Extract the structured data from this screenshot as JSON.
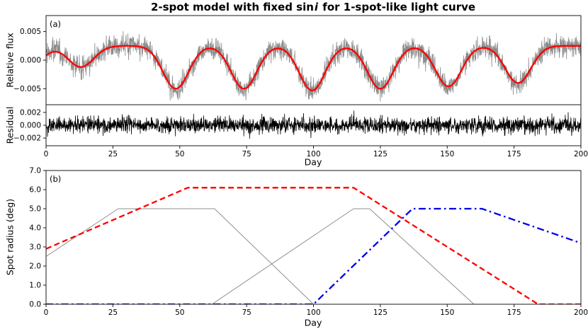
{
  "title": {
    "pre": "2-spot model with fixed sin",
    "italic": "i",
    "post": " for 1-spot-like light curve"
  },
  "chart_data": [
    {
      "id": "lightcurve",
      "type": "line",
      "panel_label": "(a)",
      "ylabel": "Relative flux",
      "xlim": [
        0,
        200
      ],
      "ylim": [
        -0.0078,
        0.0078
      ],
      "grid": false,
      "legend": "none",
      "yticks": {
        "values": [
          0.005,
          0,
          -0.005
        ],
        "labels": [
          "0.005",
          "0.000",
          "−0.005"
        ]
      },
      "series": [
        {
          "name": "observed-flux",
          "color": "#8a8a8a",
          "kind": "noisy-model",
          "noise_sigma": 0.0009,
          "linewidth": 0.8
        },
        {
          "name": "model-flux",
          "color": "#ff0000",
          "kind": "model",
          "linewidth": 2.3
        }
      ],
      "model": {
        "baseline": 0.0025,
        "sigma": 4.8,
        "dips": [
          {
            "center": -6,
            "min": -0.001
          },
          {
            "center": 13,
            "min": -0.0012
          },
          {
            "center": 48.5,
            "min": -0.005
          },
          {
            "center": 74,
            "min": -0.005
          },
          {
            "center": 99.5,
            "min": -0.0053
          },
          {
            "center": 125,
            "min": -0.005
          },
          {
            "center": 150.5,
            "min": -0.0046
          },
          {
            "center": 176.5,
            "min": -0.004
          }
        ]
      }
    },
    {
      "id": "residual",
      "type": "line",
      "ylabel": "Residual",
      "xlabel": "Day",
      "xlim": [
        0,
        200
      ],
      "ylim": [
        -0.0032,
        0.0032
      ],
      "grid": false,
      "yticks": {
        "values": [
          0.002,
          0,
          -0.002
        ],
        "labels": [
          "0.002",
          "0.000",
          "−0.002"
        ]
      },
      "xticks": {
        "values": [
          0,
          25,
          50,
          75,
          100,
          125,
          150,
          175,
          200
        ],
        "labels": [
          "0",
          "25",
          "50",
          "75",
          "100",
          "125",
          "150",
          "175",
          "200"
        ]
      },
      "series": [
        {
          "name": "residual-noise",
          "color": "#000000",
          "kind": "noise",
          "noise_sigma": 0.0006,
          "linewidth": 0.8
        }
      ]
    },
    {
      "id": "spot-radius",
      "type": "line",
      "panel_label": "(b)",
      "ylabel": "Spot radius (deg)",
      "xlabel": "Day",
      "xlim": [
        0,
        200
      ],
      "ylim": [
        0,
        7
      ],
      "grid": false,
      "yticks": {
        "values": [
          0,
          1,
          2,
          3,
          4,
          5,
          6,
          7
        ],
        "labels": [
          "0.0",
          "1.0",
          "2.0",
          "3.0",
          "4.0",
          "5.0",
          "6.0",
          "7.0"
        ]
      },
      "xticks": {
        "values": [
          0,
          25,
          50,
          75,
          100,
          125,
          150,
          175,
          200
        ],
        "labels": [
          "0",
          "25",
          "50",
          "75",
          "100",
          "125",
          "150",
          "175",
          "200"
        ]
      },
      "series": [
        {
          "name": "injected-spot-1",
          "color": "#8f8f8f",
          "dash": "solid",
          "linewidth": 1,
          "points": [
            [
              0,
              2.5
            ],
            [
              27,
              5.0
            ],
            [
              63,
              5.0
            ],
            [
              100,
              0
            ],
            [
              200,
              0
            ]
          ]
        },
        {
          "name": "injected-spot-2",
          "color": "#8f8f8f",
          "dash": "solid",
          "linewidth": 1,
          "points": [
            [
              0,
              0
            ],
            [
              62,
              0
            ],
            [
              115,
              5.0
            ],
            [
              121,
              5.0
            ],
            [
              160,
              0
            ],
            [
              200,
              0
            ]
          ]
        },
        {
          "name": "fitted-spot-1",
          "color": "#ff0000",
          "dash": "dashed",
          "linewidth": 2.3,
          "points": [
            [
              0,
              2.9
            ],
            [
              53,
              6.1
            ],
            [
              115,
              6.1
            ],
            [
              184,
              0
            ],
            [
              200,
              0
            ]
          ]
        },
        {
          "name": "fitted-spot-2",
          "color": "#0000ee",
          "dash": "dashdot",
          "linewidth": 2.3,
          "points": [
            [
              0,
              0
            ],
            [
              100,
              0
            ],
            [
              137,
              5.0
            ],
            [
              163,
              5.0
            ],
            [
              200,
              3.2
            ]
          ]
        }
      ]
    }
  ]
}
